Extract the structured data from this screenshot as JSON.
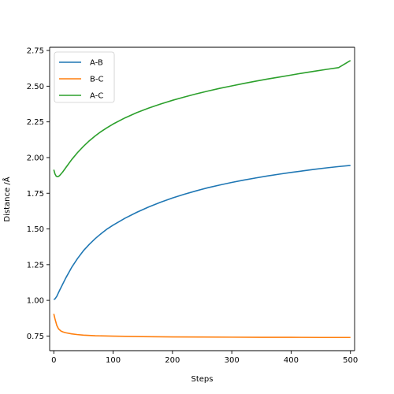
{
  "chart_data": {
    "type": "line",
    "title": "",
    "xlabel": "Steps",
    "ylabel": "Distance /Å",
    "xlim": [
      -7,
      507
    ],
    "ylim": [
      0.6475,
      2.7725
    ],
    "xticks": [
      0,
      100,
      200,
      300,
      400,
      500
    ],
    "yticks": [
      0.75,
      1.0,
      1.25,
      1.5,
      1.75,
      2.0,
      2.25,
      2.5,
      2.75
    ],
    "xtick_labels": [
      "0",
      "100",
      "200",
      "300",
      "400",
      "500"
    ],
    "ytick_labels": [
      "0.75",
      "1.00",
      "1.25",
      "1.50",
      "1.75",
      "2.00",
      "2.25",
      "2.50",
      "2.75"
    ],
    "grid": false,
    "legend_position": "top-left",
    "series": [
      {
        "name": "A-B",
        "color": "#1f77b4",
        "x": [
          0,
          2,
          5,
          10,
          20,
          30,
          40,
          50,
          60,
          70,
          80,
          90,
          100,
          120,
          140,
          160,
          180,
          200,
          220,
          240,
          260,
          280,
          300,
          320,
          340,
          360,
          380,
          400,
          420,
          440,
          460,
          480,
          500
        ],
        "y": [
          1.005,
          1.01,
          1.028,
          1.072,
          1.155,
          1.23,
          1.293,
          1.348,
          1.393,
          1.433,
          1.468,
          1.5,
          1.527,
          1.575,
          1.617,
          1.654,
          1.687,
          1.717,
          1.743,
          1.767,
          1.789,
          1.808,
          1.826,
          1.842,
          1.857,
          1.871,
          1.884,
          1.896,
          1.907,
          1.918,
          1.928,
          1.937,
          1.945
        ]
      },
      {
        "name": "B-C",
        "color": "#ff7f0e",
        "x": [
          0,
          2,
          5,
          8,
          12,
          16,
          20,
          30,
          40,
          50,
          70,
          100,
          150,
          200,
          250,
          300,
          350,
          400,
          450,
          500
        ],
        "y": [
          0.905,
          0.87,
          0.825,
          0.8,
          0.785,
          0.778,
          0.773,
          0.765,
          0.76,
          0.756,
          0.752,
          0.749,
          0.746,
          0.744,
          0.743,
          0.742,
          0.741,
          0.741,
          0.74,
          0.74
        ]
      },
      {
        "name": "A-C",
        "color": "#2ca02c",
        "x": [
          0,
          2,
          4,
          6,
          8,
          10,
          15,
          20,
          30,
          40,
          50,
          60,
          70,
          80,
          90,
          100,
          120,
          140,
          160,
          180,
          200,
          220,
          240,
          260,
          280,
          300,
          320,
          340,
          360,
          380,
          400,
          420,
          440,
          460,
          480,
          500
        ],
        "y": [
          1.915,
          1.885,
          1.87,
          1.866,
          1.868,
          1.875,
          1.899,
          1.928,
          1.985,
          2.035,
          2.079,
          2.118,
          2.152,
          2.183,
          2.21,
          2.235,
          2.278,
          2.315,
          2.347,
          2.375,
          2.401,
          2.424,
          2.446,
          2.466,
          2.485,
          2.502,
          2.519,
          2.535,
          2.55,
          2.564,
          2.578,
          2.592,
          2.605,
          2.618,
          2.63,
          2.68
        ]
      }
    ]
  }
}
